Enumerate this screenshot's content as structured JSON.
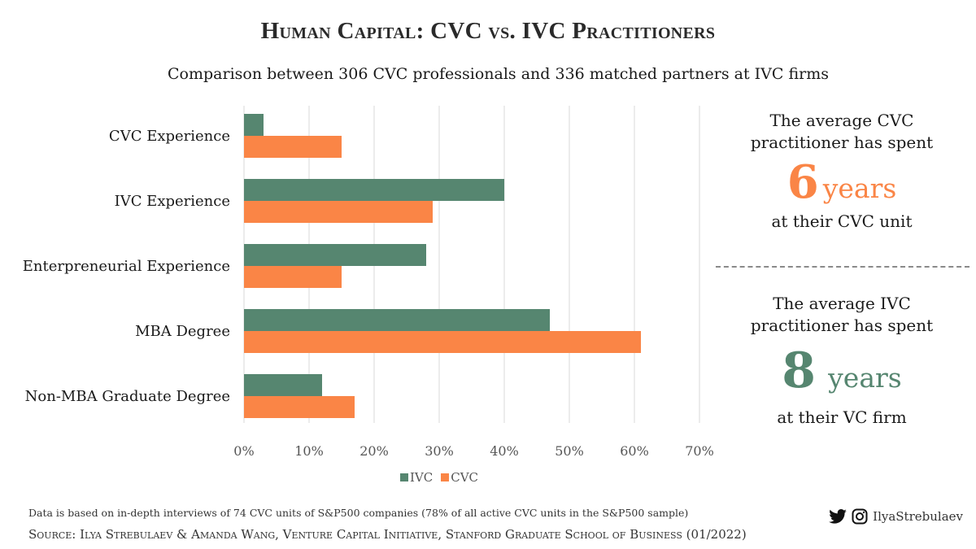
{
  "title": "Human Capital: CVC vs. IVC Practitioners",
  "subtitle": "Comparison between 306 CVC professionals and 336 matched partners at IVC firms",
  "chart_data": {
    "type": "bar",
    "orientation": "horizontal",
    "categories": [
      "CVC Experience",
      "IVC Experience",
      "Enterpreneurial Experience",
      "MBA Degree",
      "Non-MBA Graduate Degree"
    ],
    "series": [
      {
        "name": "IVC",
        "color": "#568670",
        "values": [
          3,
          40,
          28,
          47,
          12
        ]
      },
      {
        "name": "CVC",
        "color": "#fa8546",
        "values": [
          15,
          29,
          15,
          61,
          17
        ]
      }
    ],
    "x_ticks": [
      "0%",
      "10%",
      "20%",
      "30%",
      "40%",
      "50%",
      "60%",
      "70%"
    ],
    "xlim": [
      0,
      70
    ],
    "grid": true,
    "legend_position": "bottom"
  },
  "cvc_panel": {
    "line1": "The average CVC",
    "line2": "practitioner has spent",
    "number": "6",
    "unit": "years",
    "line3": "at their CVC unit",
    "color": "#fa8546"
  },
  "ivc_panel": {
    "line1": "The average IVC",
    "line2": "practitioner has spent",
    "number": "8",
    "unit": "years",
    "line3": "at their VC firm",
    "color": "#568670"
  },
  "footnote": "Data is based on in-depth interviews of 74 CVC units of S&P500 companies (78% of all active CVC units in the S&P500 sample)",
  "source": "Source: Ilya Strebulaev & Amanda Wang, Venture Capital Initiative, Stanford Graduate School of Business (01/2022)",
  "social": {
    "handle": "IlyaStrebulaev",
    "icons": [
      "twitter-icon",
      "instagram-icon"
    ]
  }
}
